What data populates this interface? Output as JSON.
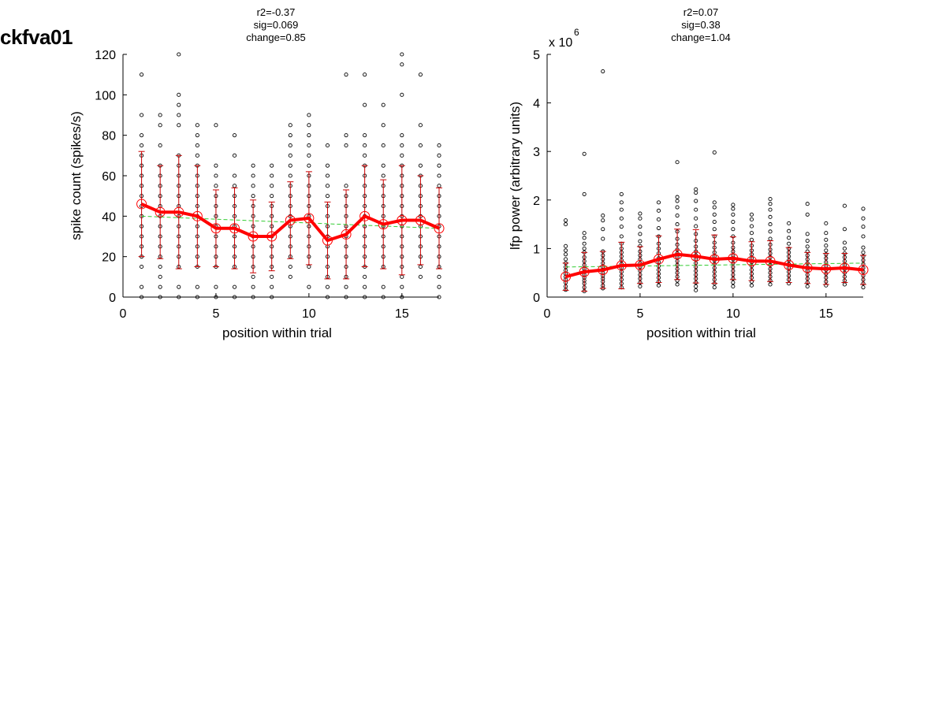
{
  "page": {
    "title": "ckfva01"
  },
  "colors": {
    "mean_line": "#ff0000",
    "error_bar": "#cc0000",
    "trend": "#33cc33",
    "points": "#000000"
  },
  "chart_data": [
    {
      "type": "scatter",
      "stats": [
        "r2=-0.37",
        "sig=0.069",
        "change=0.85"
      ],
      "xlabel": "position within trial",
      "ylabel": "spike count (spikes/s)",
      "xlim": [
        0,
        17
      ],
      "ylim": [
        0,
        120
      ],
      "xticks": [
        0,
        5,
        10,
        15
      ],
      "yticks": [
        0,
        20,
        40,
        60,
        80,
        100,
        120
      ],
      "exponent_label": "",
      "x": [
        1,
        2,
        3,
        4,
        5,
        6,
        7,
        8,
        9,
        10,
        11,
        12,
        13,
        14,
        15,
        16,
        17
      ],
      "mean": [
        46,
        42,
        42,
        40,
        34,
        34,
        30,
        30,
        38,
        39,
        28,
        31,
        40,
        36,
        38,
        38,
        34
      ],
      "sd": [
        26,
        23,
        28,
        25,
        19,
        20,
        18,
        17,
        19,
        23,
        19,
        22,
        25,
        22,
        27,
        22,
        20
      ],
      "trend": [
        40,
        34
      ],
      "points": [
        [
          0,
          5,
          15,
          20,
          25,
          30,
          35,
          40,
          45,
          50,
          55,
          60,
          65,
          70,
          75,
          80,
          90,
          110
        ],
        [
          0,
          5,
          10,
          15,
          20,
          25,
          30,
          35,
          40,
          45,
          50,
          55,
          60,
          65,
          75,
          85,
          90
        ],
        [
          0,
          5,
          15,
          20,
          25,
          30,
          35,
          40,
          45,
          50,
          55,
          60,
          65,
          70,
          85,
          90,
          95,
          100,
          120
        ],
        [
          0,
          5,
          15,
          20,
          25,
          30,
          35,
          40,
          45,
          50,
          55,
          60,
          65,
          70,
          75,
          80,
          85
        ],
        [
          0,
          5,
          15,
          20,
          25,
          30,
          35,
          40,
          45,
          50,
          55,
          60,
          65,
          85
        ],
        [
          0,
          5,
          15,
          20,
          25,
          30,
          35,
          40,
          45,
          50,
          55,
          60,
          70,
          80
        ],
        [
          0,
          5,
          10,
          15,
          20,
          25,
          30,
          35,
          40,
          45,
          50,
          55,
          60,
          65
        ],
        [
          0,
          5,
          10,
          15,
          20,
          25,
          30,
          35,
          40,
          45,
          50,
          55,
          60,
          65
        ],
        [
          10,
          15,
          20,
          25,
          30,
          35,
          40,
          45,
          50,
          55,
          60,
          65,
          70,
          75,
          80,
          85
        ],
        [
          5,
          15,
          20,
          25,
          30,
          35,
          40,
          45,
          50,
          55,
          60,
          65,
          70,
          75,
          80,
          85,
          90
        ],
        [
          0,
          5,
          10,
          15,
          20,
          25,
          30,
          35,
          40,
          45,
          50,
          55,
          60,
          65,
          75
        ],
        [
          0,
          5,
          10,
          15,
          20,
          25,
          30,
          35,
          40,
          45,
          50,
          55,
          75,
          80,
          110
        ],
        [
          0,
          5,
          10,
          15,
          20,
          25,
          30,
          35,
          40,
          45,
          50,
          55,
          60,
          65,
          70,
          75,
          80,
          95,
          110
        ],
        [
          0,
          5,
          15,
          20,
          25,
          30,
          35,
          40,
          45,
          50,
          55,
          60,
          65,
          75,
          85,
          95
        ],
        [
          0,
          5,
          10,
          15,
          20,
          25,
          30,
          35,
          40,
          45,
          50,
          55,
          60,
          65,
          70,
          75,
          80,
          100,
          115,
          120
        ],
        [
          10,
          15,
          20,
          25,
          30,
          35,
          40,
          45,
          50,
          55,
          60,
          65,
          75,
          85,
          110
        ],
        [
          0,
          5,
          10,
          15,
          20,
          25,
          30,
          35,
          40,
          45,
          50,
          55,
          60,
          65,
          70,
          75
        ]
      ]
    },
    {
      "type": "scatter",
      "stats": [
        "r2=0.07",
        "sig=0.38",
        "change=1.04"
      ],
      "xlabel": "position within trial",
      "ylabel": "lfp power (arbitrary units)",
      "xlim": [
        0,
        17
      ],
      "ylim": [
        0,
        5
      ],
      "xticks": [
        0,
        5,
        10,
        15
      ],
      "yticks": [
        0,
        1,
        2,
        3,
        4,
        5
      ],
      "exponent_label": "x 10",
      "exponent_power": "6",
      "x": [
        1,
        2,
        3,
        4,
        5,
        6,
        7,
        8,
        9,
        10,
        11,
        12,
        13,
        14,
        15,
        16,
        17
      ],
      "mean": [
        0.42,
        0.52,
        0.56,
        0.65,
        0.66,
        0.78,
        0.88,
        0.84,
        0.78,
        0.8,
        0.74,
        0.74,
        0.66,
        0.6,
        0.58,
        0.6,
        0.56
      ],
      "sd": [
        0.28,
        0.4,
        0.38,
        0.48,
        0.38,
        0.48,
        0.52,
        0.55,
        0.5,
        0.44,
        0.4,
        0.42,
        0.36,
        0.32,
        0.32,
        0.3,
        0.3
      ],
      "trend": [
        0.62,
        0.7
      ],
      "points": [
        [
          0.15,
          0.22,
          0.3,
          0.36,
          0.42,
          0.48,
          0.55,
          0.62,
          0.7,
          0.78,
          0.88,
          0.96,
          1.05,
          1.5,
          1.58
        ],
        [
          0.12,
          0.2,
          0.28,
          0.34,
          0.4,
          0.46,
          0.52,
          0.58,
          0.66,
          0.74,
          0.82,
          0.92,
          1.0,
          1.1,
          1.22,
          1.32,
          2.12,
          2.95
        ],
        [
          0.18,
          0.24,
          0.32,
          0.38,
          0.44,
          0.5,
          0.56,
          0.62,
          0.7,
          0.78,
          0.86,
          0.94,
          1.2,
          1.4,
          1.58,
          1.68,
          4.65
        ],
        [
          0.2,
          0.28,
          0.36,
          0.44,
          0.52,
          0.6,
          0.68,
          0.76,
          0.84,
          0.92,
          1.0,
          1.1,
          1.25,
          1.45,
          1.62,
          1.8,
          1.95,
          2.12
        ],
        [
          0.22,
          0.3,
          0.38,
          0.46,
          0.54,
          0.62,
          0.7,
          0.78,
          0.86,
          0.94,
          1.05,
          1.15,
          1.3,
          1.45,
          1.62,
          1.72
        ],
        [
          0.24,
          0.32,
          0.4,
          0.48,
          0.56,
          0.64,
          0.72,
          0.8,
          0.9,
          1.0,
          1.1,
          1.25,
          1.42,
          1.6,
          1.78,
          1.95
        ],
        [
          0.26,
          0.34,
          0.42,
          0.5,
          0.58,
          0.66,
          0.74,
          0.82,
          0.9,
          0.98,
          1.08,
          1.2,
          1.35,
          1.5,
          1.68,
          1.85,
          1.98,
          2.06,
          2.78
        ],
        [
          0.14,
          0.22,
          0.3,
          0.38,
          0.46,
          0.54,
          0.62,
          0.7,
          0.78,
          0.86,
          0.94,
          1.04,
          1.16,
          1.3,
          1.46,
          1.62,
          1.8,
          1.98,
          2.15,
          2.22
        ],
        [
          0.2,
          0.28,
          0.36,
          0.44,
          0.52,
          0.6,
          0.68,
          0.76,
          0.84,
          0.92,
          1.02,
          1.12,
          1.25,
          1.4,
          1.55,
          1.7,
          1.85,
          1.95,
          2.98
        ],
        [
          0.22,
          0.3,
          0.38,
          0.46,
          0.54,
          0.62,
          0.7,
          0.78,
          0.86,
          0.94,
          1.02,
          1.12,
          1.25,
          1.4,
          1.55,
          1.7,
          1.82,
          1.9
        ],
        [
          0.24,
          0.32,
          0.4,
          0.48,
          0.56,
          0.64,
          0.72,
          0.8,
          0.88,
          0.96,
          1.06,
          1.18,
          1.32,
          1.46,
          1.6,
          1.7
        ],
        [
          0.26,
          0.34,
          0.42,
          0.5,
          0.58,
          0.66,
          0.74,
          0.82,
          0.9,
          0.98,
          1.08,
          1.2,
          1.35,
          1.5,
          1.65,
          1.8,
          1.92,
          2.02
        ],
        [
          0.28,
          0.36,
          0.44,
          0.52,
          0.6,
          0.68,
          0.76,
          0.84,
          0.92,
          1.0,
          1.1,
          1.22,
          1.36,
          1.52
        ],
        [
          0.22,
          0.3,
          0.38,
          0.46,
          0.54,
          0.62,
          0.7,
          0.78,
          0.86,
          0.94,
          1.04,
          1.16,
          1.3,
          1.7,
          1.92
        ],
        [
          0.24,
          0.32,
          0.4,
          0.48,
          0.56,
          0.64,
          0.72,
          0.8,
          0.88,
          0.96,
          1.06,
          1.18,
          1.32,
          1.52
        ],
        [
          0.26,
          0.34,
          0.42,
          0.5,
          0.58,
          0.66,
          0.74,
          0.82,
          0.9,
          1.0,
          1.12,
          1.4,
          1.88
        ],
        [
          0.2,
          0.28,
          0.36,
          0.44,
          0.52,
          0.6,
          0.68,
          0.76,
          0.84,
          0.92,
          1.02,
          1.25,
          1.45,
          1.62,
          1.82
        ]
      ]
    }
  ]
}
